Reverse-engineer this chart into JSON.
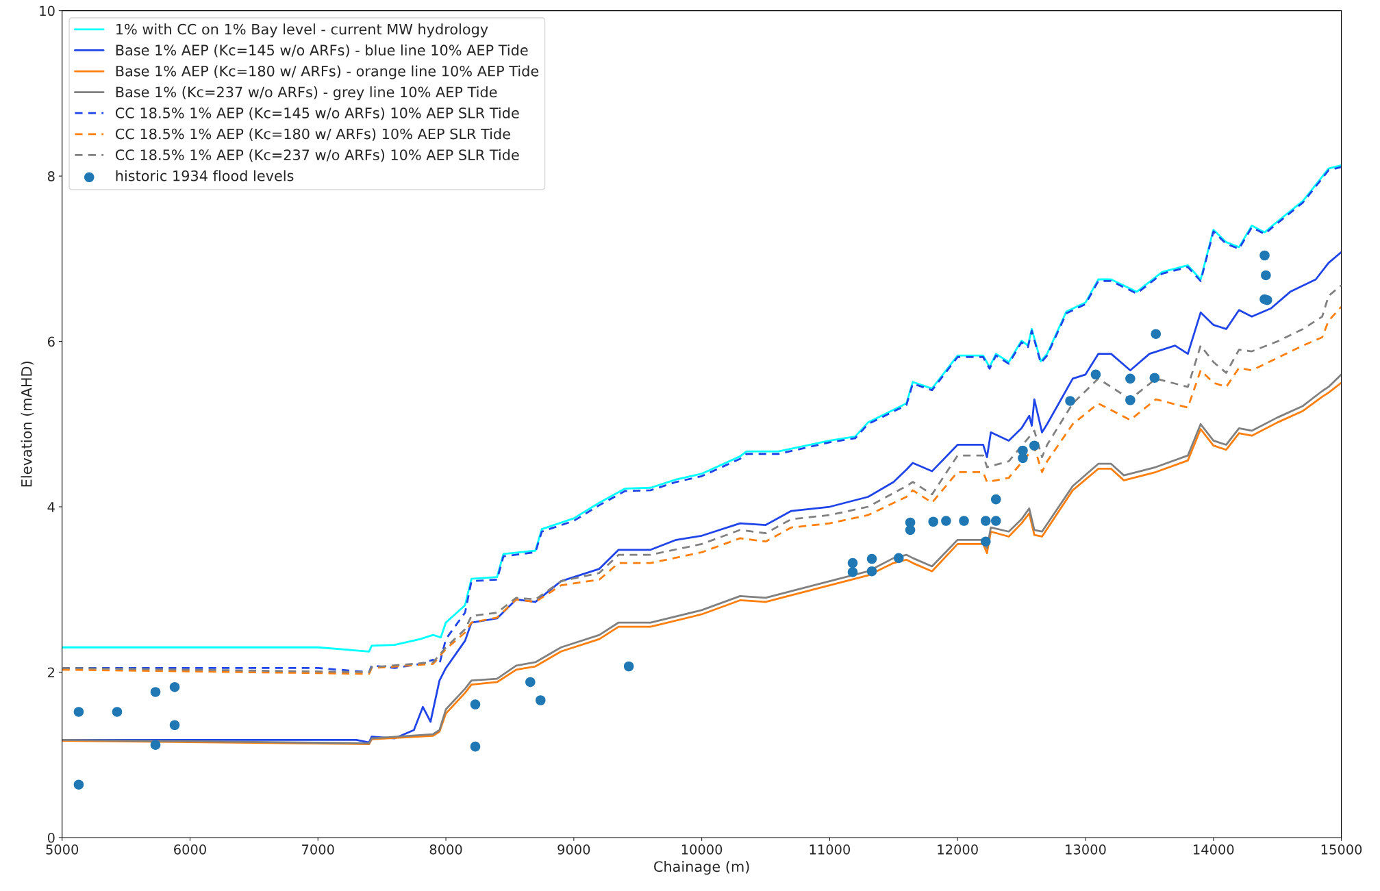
{
  "chart_data": {
    "type": "line",
    "xlabel": "Chainage (m)",
    "ylabel": "Elevation (mAHD)",
    "xlim": [
      5000,
      15000
    ],
    "ylim": [
      0,
      10
    ],
    "xticks": [
      5000,
      6000,
      7000,
      8000,
      9000,
      10000,
      11000,
      12000,
      13000,
      14000,
      15000
    ],
    "yticks": [
      0,
      2,
      4,
      6,
      8,
      10
    ],
    "grid": false,
    "legend": "top left",
    "series": [
      {
        "name": "1% with CC on 1% Bay level - current MW hydrology",
        "color": "#00ffff",
        "line_style": "solid",
        "x": [
          5000,
          7000,
          7400,
          7420,
          7600,
          7800,
          7900,
          7960,
          8000,
          8150,
          8200,
          8400,
          8450,
          8700,
          8750,
          9000,
          9200,
          9400,
          9600,
          9800,
          10000,
          10300,
          10350,
          10600,
          11000,
          11200,
          11300,
          11600,
          11650,
          11800,
          12000,
          12200,
          12250,
          12300,
          12400,
          12500,
          12550,
          12580,
          12650,
          12700,
          12850,
          13000,
          13100,
          13200,
          13400,
          13600,
          13800,
          13900,
          14000,
          14100,
          14200,
          14300,
          14400,
          14500,
          14700,
          14900,
          15000
        ],
        "values": [
          2.3,
          2.3,
          2.25,
          2.32,
          2.33,
          2.4,
          2.45,
          2.42,
          2.6,
          2.81,
          3.13,
          3.15,
          3.43,
          3.47,
          3.73,
          3.86,
          4.05,
          4.22,
          4.23,
          4.33,
          4.4,
          4.61,
          4.67,
          4.67,
          4.8,
          4.85,
          5.02,
          5.25,
          5.51,
          5.43,
          5.83,
          5.83,
          5.69,
          5.85,
          5.75,
          6.01,
          5.95,
          6.15,
          5.76,
          5.85,
          6.36,
          6.47,
          6.75,
          6.75,
          6.6,
          6.84,
          6.92,
          6.75,
          7.35,
          7.2,
          7.14,
          7.4,
          7.32,
          7.45,
          7.7,
          8.09,
          8.13
        ]
      },
      {
        "name": "Base 1% AEP (Kc=145 w/o ARFs) - blue line 10% AEP Tide",
        "color": "#1f45e8",
        "line_style": "solid",
        "x": [
          5000,
          7300,
          7400,
          7420,
          7600,
          7750,
          7820,
          7880,
          7950,
          8000,
          8150,
          8200,
          8400,
          8550,
          8700,
          8900,
          9200,
          9350,
          9600,
          9800,
          10000,
          10300,
          10500,
          10700,
          11000,
          11300,
          11500,
          11600,
          11650,
          11800,
          12000,
          12200,
          12230,
          12260,
          12400,
          12500,
          12560,
          12580,
          12600,
          12660,
          12700,
          12900,
          13000,
          13100,
          13200,
          13350,
          13500,
          13700,
          13800,
          13900,
          14000,
          14100,
          14200,
          14300,
          14450,
          14600,
          14800,
          14900,
          15000
        ],
        "values": [
          1.18,
          1.18,
          1.15,
          1.22,
          1.2,
          1.3,
          1.58,
          1.4,
          1.9,
          2.05,
          2.38,
          2.6,
          2.65,
          2.88,
          2.85,
          3.1,
          3.25,
          3.48,
          3.48,
          3.6,
          3.65,
          3.8,
          3.78,
          3.95,
          4.0,
          4.12,
          4.3,
          4.45,
          4.53,
          4.43,
          4.75,
          4.75,
          4.6,
          4.9,
          4.8,
          4.95,
          5.1,
          4.98,
          5.3,
          4.9,
          5.0,
          5.55,
          5.6,
          5.85,
          5.85,
          5.65,
          5.85,
          5.95,
          5.85,
          6.35,
          6.2,
          6.15,
          6.38,
          6.3,
          6.4,
          6.6,
          6.75,
          6.95,
          7.08
        ]
      },
      {
        "name": "Base 1% AEP (Kc=180 w/ ARFs) - orange line 10% AEP Tide",
        "color": "#ff7f0e",
        "line_style": "solid",
        "x": [
          5000,
          7400,
          7420,
          7900,
          7950,
          8000,
          8150,
          8200,
          8400,
          8550,
          8700,
          8900,
          9200,
          9350,
          9600,
          10000,
          10300,
          10500,
          10700,
          11000,
          11300,
          11500,
          11600,
          11650,
          11800,
          12000,
          12200,
          12230,
          12260,
          12400,
          12500,
          12560,
          12600,
          12660,
          12900,
          13100,
          13200,
          13300,
          13550,
          13800,
          13900,
          14000,
          14100,
          14200,
          14300,
          14500,
          14700,
          14850,
          14900,
          15000
        ],
        "values": [
          1.17,
          1.13,
          1.19,
          1.23,
          1.28,
          1.5,
          1.75,
          1.85,
          1.88,
          2.03,
          2.07,
          2.25,
          2.4,
          2.55,
          2.55,
          2.7,
          2.87,
          2.85,
          2.93,
          3.05,
          3.17,
          3.32,
          3.36,
          3.32,
          3.22,
          3.55,
          3.55,
          3.44,
          3.7,
          3.64,
          3.8,
          3.92,
          3.66,
          3.64,
          4.2,
          4.46,
          4.46,
          4.32,
          4.42,
          4.56,
          4.94,
          4.74,
          4.69,
          4.89,
          4.86,
          5.02,
          5.16,
          5.33,
          5.38,
          5.5
        ]
      },
      {
        "name": "Base 1% (Kc=237 w/o ARFs) - grey line 10% AEP Tide",
        "color": "#808080",
        "line_style": "solid",
        "x": [
          5000,
          7400,
          7420,
          7900,
          7950,
          8000,
          8150,
          8200,
          8400,
          8550,
          8700,
          8900,
          9200,
          9350,
          9600,
          10000,
          10300,
          10500,
          10700,
          11000,
          11300,
          11500,
          11600,
          11650,
          11800,
          12000,
          12200,
          12230,
          12260,
          12400,
          12500,
          12560,
          12600,
          12660,
          12900,
          13100,
          13200,
          13300,
          13550,
          13800,
          13900,
          14000,
          14100,
          14200,
          14300,
          14500,
          14700,
          14850,
          14900,
          15000
        ],
        "values": [
          1.18,
          1.14,
          1.2,
          1.25,
          1.3,
          1.55,
          1.8,
          1.9,
          1.92,
          2.08,
          2.12,
          2.3,
          2.45,
          2.6,
          2.6,
          2.75,
          2.92,
          2.9,
          2.98,
          3.1,
          3.22,
          3.38,
          3.42,
          3.38,
          3.28,
          3.6,
          3.6,
          3.5,
          3.75,
          3.7,
          3.85,
          3.98,
          3.72,
          3.7,
          4.25,
          4.52,
          4.52,
          4.38,
          4.48,
          4.62,
          5.0,
          4.8,
          4.75,
          4.95,
          4.92,
          5.08,
          5.22,
          5.4,
          5.45,
          5.6
        ]
      },
      {
        "name": "CC 18.5% 1% AEP (Kc=145 w/o ARFs) 10% AEP SLR Tide",
        "color": "#1f45e8",
        "line_style": "dashed",
        "x": [
          5000,
          7000,
          7400,
          7420,
          7600,
          7800,
          7900,
          7950,
          8000,
          8150,
          8200,
          8400,
          8450,
          8700,
          8750,
          9000,
          9200,
          9400,
          9600,
          9800,
          10000,
          10300,
          10350,
          10600,
          11000,
          11200,
          11300,
          11600,
          11650,
          11800,
          12000,
          12200,
          12250,
          12300,
          12400,
          12500,
          12550,
          12580,
          12650,
          12700,
          12850,
          13000,
          13100,
          13200,
          13400,
          13600,
          13800,
          13900,
          14000,
          14100,
          14200,
          14300,
          14400,
          14500,
          14700,
          14900,
          15000
        ],
        "values": [
          2.05,
          2.05,
          2.0,
          2.08,
          2.05,
          2.1,
          2.15,
          2.1,
          2.4,
          2.72,
          3.1,
          3.12,
          3.4,
          3.45,
          3.7,
          3.83,
          4.02,
          4.19,
          4.2,
          4.3,
          4.37,
          4.58,
          4.64,
          4.64,
          4.78,
          4.83,
          5.0,
          5.23,
          5.49,
          5.41,
          5.81,
          5.81,
          5.67,
          5.83,
          5.73,
          5.99,
          5.93,
          6.13,
          5.74,
          5.83,
          6.34,
          6.45,
          6.73,
          6.73,
          6.58,
          6.82,
          6.9,
          6.73,
          7.33,
          7.18,
          7.12,
          7.38,
          7.3,
          7.43,
          7.68,
          8.07,
          8.11
        ]
      },
      {
        "name": "CC 18.5% 1% AEP (Kc=180 w/ ARFs) 10% AEP SLR Tide",
        "color": "#ff7f0e",
        "line_style": "dashed",
        "x": [
          5000,
          7400,
          7420,
          7900,
          8000,
          8150,
          8200,
          8400,
          8550,
          8700,
          8900,
          9200,
          9350,
          9600,
          10000,
          10300,
          10500,
          10700,
          11000,
          11300,
          11600,
          11650,
          11800,
          12000,
          12200,
          12230,
          12400,
          12600,
          12660,
          12700,
          12900,
          13100,
          13350,
          13550,
          13800,
          13900,
          14000,
          14100,
          14200,
          14300,
          14500,
          14700,
          14850,
          14900,
          15000
        ],
        "values": [
          2.03,
          1.98,
          2.05,
          2.1,
          2.28,
          2.48,
          2.6,
          2.66,
          2.88,
          2.85,
          3.05,
          3.12,
          3.32,
          3.32,
          3.45,
          3.62,
          3.58,
          3.75,
          3.8,
          3.9,
          4.12,
          4.2,
          4.05,
          4.42,
          4.42,
          4.3,
          4.35,
          4.72,
          4.42,
          4.55,
          5.0,
          5.25,
          5.05,
          5.3,
          5.2,
          5.65,
          5.5,
          5.45,
          5.68,
          5.65,
          5.8,
          5.95,
          6.05,
          6.25,
          6.42
        ]
      },
      {
        "name": "CC 18.5% 1% AEP (Kc=237 w/o ARFs) 10% AEP SLR Tide",
        "color": "#808080",
        "line_style": "dashed",
        "x": [
          5000,
          7400,
          7420,
          7900,
          8000,
          8150,
          8200,
          8400,
          8550,
          8700,
          8900,
          9200,
          9350,
          9600,
          10000,
          10300,
          10500,
          10700,
          11000,
          11300,
          11600,
          11650,
          11800,
          12000,
          12200,
          12230,
          12400,
          12600,
          12660,
          12700,
          12900,
          13100,
          13350,
          13550,
          13800,
          13900,
          14000,
          14100,
          14200,
          14300,
          14500,
          14700,
          14850,
          14900,
          15000
        ],
        "values": [
          2.05,
          2.0,
          2.06,
          2.12,
          2.3,
          2.52,
          2.68,
          2.72,
          2.9,
          2.88,
          3.1,
          3.2,
          3.42,
          3.42,
          3.55,
          3.72,
          3.68,
          3.85,
          3.9,
          4.0,
          4.25,
          4.3,
          4.15,
          4.62,
          4.62,
          4.48,
          4.55,
          4.92,
          4.6,
          4.75,
          5.25,
          5.55,
          5.3,
          5.55,
          5.45,
          5.95,
          5.75,
          5.62,
          5.9,
          5.88,
          6.0,
          6.15,
          6.3,
          6.55,
          6.68
        ]
      },
      {
        "name": "historic 1934 flood levels",
        "type": "scatter",
        "marker": "circle",
        "color": "#1f77b4",
        "x": [
          5130,
          5130,
          5430,
          5730,
          5730,
          5880,
          5880,
          8230,
          8230,
          8660,
          8740,
          9430,
          11180,
          11180,
          11330,
          11330,
          11540,
          11630,
          11630,
          11810,
          11910,
          12050,
          12220,
          12220,
          12300,
          12300,
          12510,
          12510,
          12600,
          12880,
          13080,
          13350,
          13350,
          13550,
          13540,
          14400,
          14410,
          14400,
          14420
        ],
        "values": [
          0.64,
          1.52,
          1.52,
          1.76,
          1.12,
          1.82,
          1.36,
          1.61,
          1.1,
          1.88,
          1.66,
          2.07,
          3.32,
          3.21,
          3.37,
          3.22,
          3.38,
          3.81,
          3.72,
          3.82,
          3.83,
          3.83,
          3.58,
          3.83,
          4.09,
          3.83,
          4.59,
          4.68,
          4.74,
          5.28,
          5.6,
          5.55,
          5.29,
          6.09,
          5.56,
          7.04,
          6.8,
          6.51,
          6.5
        ]
      }
    ]
  }
}
